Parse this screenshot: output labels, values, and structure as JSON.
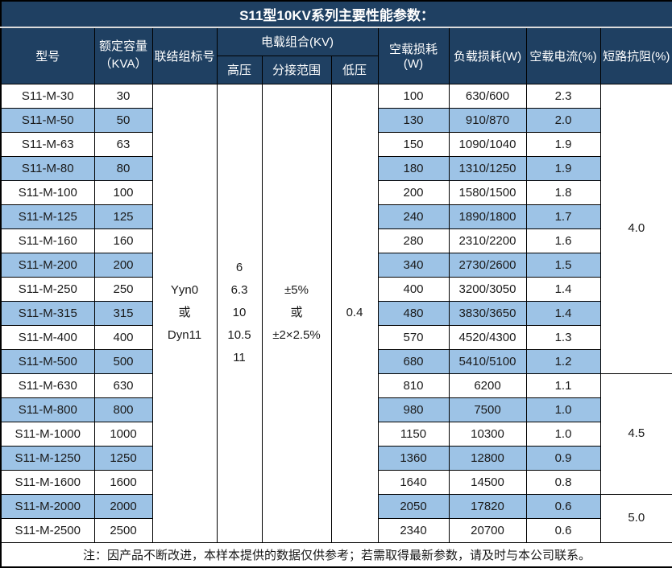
{
  "title": "S11型10KV系列主要性能参数：",
  "columns": {
    "model": "型号",
    "capacity": "额定容量\n（KVA）",
    "connection": "联结组标号",
    "voltage_group": "电载组合(KV)",
    "high_voltage": "高压",
    "tap_range": "分接范围",
    "low_voltage": "低压",
    "no_load_loss": "空载损耗(W)",
    "load_loss": "负载损耗(W)",
    "no_load_current": "空载电流(%)",
    "impedance": "短路抗阻(%)"
  },
  "merged": {
    "connection": "Yyn0\n或\nDyn11",
    "high_voltage": "6\n6.3\n10\n10.5\n11",
    "tap_range": "±5%\n或\n±2×2.5%",
    "low_voltage": "0.4"
  },
  "rows": [
    {
      "model": "S11-M-30",
      "capacity": "30",
      "no_load_loss": "100",
      "load_loss": "630/600",
      "no_load_current": "2.3"
    },
    {
      "model": "S11-M-50",
      "capacity": "50",
      "no_load_loss": "130",
      "load_loss": "910/870",
      "no_load_current": "2.0"
    },
    {
      "model": "S11-M-63",
      "capacity": "63",
      "no_load_loss": "150",
      "load_loss": "1090/1040",
      "no_load_current": "1.9"
    },
    {
      "model": "S11-M-80",
      "capacity": "80",
      "no_load_loss": "180",
      "load_loss": "1310/1250",
      "no_load_current": "1.9"
    },
    {
      "model": "S11-M-100",
      "capacity": "100",
      "no_load_loss": "200",
      "load_loss": "1580/1500",
      "no_load_current": "1.8"
    },
    {
      "model": "S11-M-125",
      "capacity": "125",
      "no_load_loss": "240",
      "load_loss": "1890/1800",
      "no_load_current": "1.7"
    },
    {
      "model": "S11-M-160",
      "capacity": "160",
      "no_load_loss": "280",
      "load_loss": "2310/2200",
      "no_load_current": "1.6"
    },
    {
      "model": "S11-M-200",
      "capacity": "200",
      "no_load_loss": "340",
      "load_loss": "2730/2600",
      "no_load_current": "1.5"
    },
    {
      "model": "S11-M-250",
      "capacity": "250",
      "no_load_loss": "400",
      "load_loss": "3200/3050",
      "no_load_current": "1.4"
    },
    {
      "model": "S11-M-315",
      "capacity": "315",
      "no_load_loss": "480",
      "load_loss": "3830/3650",
      "no_load_current": "1.4"
    },
    {
      "model": "S11-M-400",
      "capacity": "400",
      "no_load_loss": "570",
      "load_loss": "4520/4300",
      "no_load_current": "1.3"
    },
    {
      "model": "S11-M-500",
      "capacity": "500",
      "no_load_loss": "680",
      "load_loss": "5410/5100",
      "no_load_current": "1.2"
    },
    {
      "model": "S11-M-630",
      "capacity": "630",
      "no_load_loss": "810",
      "load_loss": "6200",
      "no_load_current": "1.1"
    },
    {
      "model": "S11-M-800",
      "capacity": "800",
      "no_load_loss": "980",
      "load_loss": "7500",
      "no_load_current": "1.0"
    },
    {
      "model": "S11-M-1000",
      "capacity": "1000",
      "no_load_loss": "1150",
      "load_loss": "10300",
      "no_load_current": "1.0"
    },
    {
      "model": "S11-M-1250",
      "capacity": "1250",
      "no_load_loss": "1360",
      "load_loss": "12800",
      "no_load_current": "0.9"
    },
    {
      "model": "S11-M-1600",
      "capacity": "1600",
      "no_load_loss": "1640",
      "load_loss": "14500",
      "no_load_current": "0.8"
    },
    {
      "model": "S11-M-2000",
      "capacity": "2000",
      "no_load_loss": "2050",
      "load_loss": "17820",
      "no_load_current": "0.6"
    },
    {
      "model": "S11-M-2500",
      "capacity": "2500",
      "no_load_loss": "2340",
      "load_loss": "20700",
      "no_load_current": "0.6"
    }
  ],
  "impedance_groups": [
    {
      "value": "4.0",
      "rows": 12
    },
    {
      "value": "4.5",
      "rows": 5
    },
    {
      "value": "5.0",
      "rows": 2
    }
  ],
  "footer": {
    "note": "注：因产品不断改进，本样本提供的数据仅供参考；若需取得最新参数，请及时与本公司联系。"
  },
  "colors": {
    "header_bg": "#1f4062",
    "stripe": "#9dc3e6",
    "border": "#000000"
  }
}
